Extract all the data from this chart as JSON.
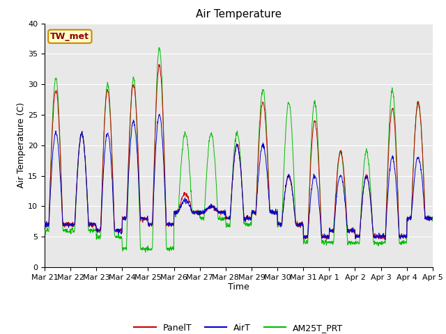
{
  "title": "Air Temperature",
  "xlabel": "Time",
  "ylabel": "Air Temperature (C)",
  "ylim": [
    0,
    40
  ],
  "yticks": [
    0,
    5,
    10,
    15,
    20,
    25,
    30,
    35,
    40
  ],
  "date_labels": [
    "Mar 21",
    "Mar 22",
    "Mar 23",
    "Mar 24",
    "Mar 25",
    "Mar 26",
    "Mar 27",
    "Mar 28",
    "Mar 29",
    "Mar 30",
    "Mar 31",
    "Apr 1",
    "Apr 2",
    "Apr 3",
    "Apr 4",
    "Apr 5"
  ],
  "panel_color": "#cc0000",
  "airt_color": "#0000cc",
  "am25t_color": "#00bb00",
  "bg_color": "#e8e8e8",
  "annotation_text": "TW_met",
  "annotation_bg": "#ffffcc",
  "annotation_border": "#cc8800",
  "legend_labels": [
    "PanelT",
    "AirT",
    "AM25T_PRT"
  ],
  "title_fontsize": 11,
  "axis_label_fontsize": 9,
  "tick_fontsize": 8,
  "day_peaks": [
    29,
    22,
    29,
    30,
    33,
    12,
    10,
    20,
    27,
    15,
    24,
    19,
    15,
    26,
    27
  ],
  "day_mins": [
    7,
    7,
    6,
    8,
    7,
    9,
    9,
    8,
    9,
    7,
    5,
    6,
    5,
    5,
    8
  ],
  "am25t_peaks": [
    31,
    22,
    30,
    31,
    36,
    22,
    22,
    22,
    29,
    27,
    27,
    19,
    19,
    29,
    27
  ],
  "am25t_mins": [
    6,
    6,
    5,
    3,
    3,
    9,
    8,
    7,
    9,
    7,
    4,
    4,
    4,
    4,
    8
  ],
  "airt_peaks": [
    22,
    22,
    22,
    24,
    25,
    11,
    10,
    20,
    20,
    15,
    15,
    15,
    15,
    18,
    18
  ],
  "airt_mins": [
    7,
    7,
    6,
    8,
    7,
    9,
    9,
    8,
    9,
    7,
    5,
    6,
    5,
    5,
    8
  ]
}
